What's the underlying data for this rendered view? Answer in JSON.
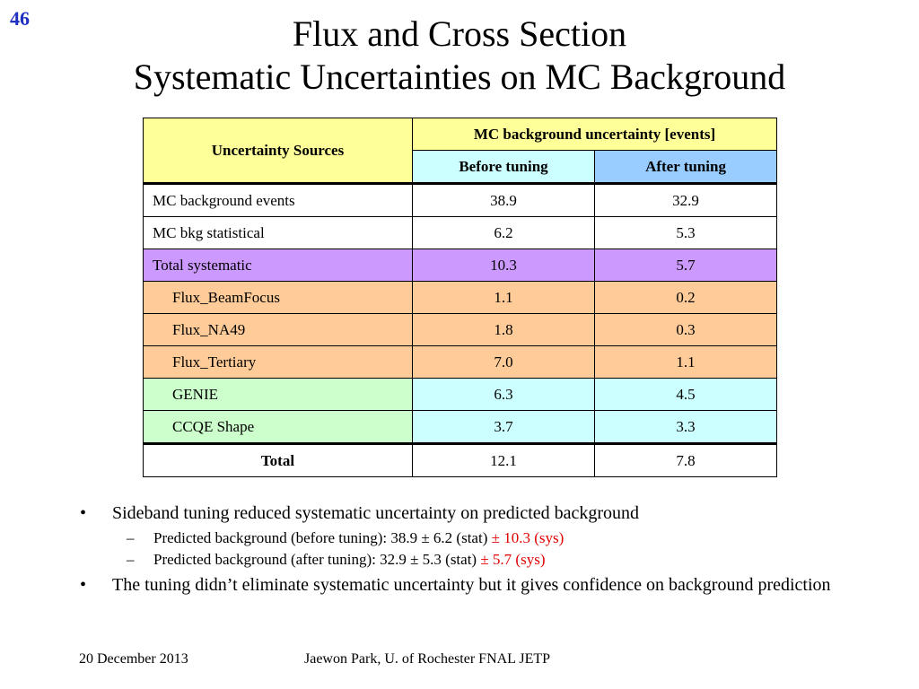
{
  "slide_number": "46",
  "title": {
    "line1": "Flux and Cross Section",
    "line2": "Systematic Uncertainties on MC Background"
  },
  "colors": {
    "slide_number": "#1f2fc0",
    "header_yellow": "#ffff99",
    "before_tuning_cyan": "#ccffff",
    "after_tuning_blue": "#99ccff",
    "total_systematic_purple": "#cc99ff",
    "flux_orange": "#ffcc99",
    "genie_green": "#ccffcc",
    "genie_values_cyan": "#ccffff",
    "sys_red": "#e00000"
  },
  "table": {
    "header": {
      "sources": "Uncertainty Sources",
      "group": "MC background uncertainty [events]",
      "before": "Before tuning",
      "after": "After tuning"
    },
    "rows": [
      {
        "label": "MC background events",
        "before": "38.9",
        "after": "32.9"
      },
      {
        "label": "MC bkg statistical",
        "before": "6.2",
        "after": "5.3"
      },
      {
        "label": "Total systematic",
        "before": "10.3",
        "after": "5.7"
      },
      {
        "label": "Flux_BeamFocus",
        "before": "1.1",
        "after": "0.2"
      },
      {
        "label": "Flux_NA49",
        "before": "1.8",
        "after": "0.3"
      },
      {
        "label": "Flux_Tertiary",
        "before": "7.0",
        "after": "1.1"
      },
      {
        "label": "GENIE",
        "before": "6.3",
        "after": "4.5"
      },
      {
        "label": "CCQE Shape",
        "before": "3.7",
        "after": "3.3"
      },
      {
        "label": "Total",
        "before": "12.1",
        "after": "7.8"
      }
    ]
  },
  "bullets": {
    "b1": "Sideband tuning reduced systematic uncertainty on predicted background",
    "b1_sub1_text": "Predicted background (before tuning): 38.9 ± 6.2 (stat) ",
    "b1_sub1_red": "± 10.3 (sys)",
    "b1_sub2_text": "Predicted background (after tuning): 32.9 ± 5.3 (stat) ",
    "b1_sub2_red": "± 5.7 (sys)",
    "b2": "The tuning didn’t eliminate systematic uncertainty  but it gives confidence on background prediction",
    "bullet_symbol": "•",
    "dash_symbol": "–"
  },
  "footer": {
    "date": "20 December 2013",
    "author": "Jaewon Park, U. of Rochester  FNAL JETP"
  }
}
